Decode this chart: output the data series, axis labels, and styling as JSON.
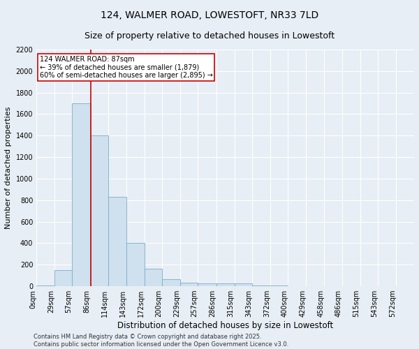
{
  "title": "124, WALMER ROAD, LOWESTOFT, NR33 7LD",
  "subtitle": "Size of property relative to detached houses in Lowestoft",
  "xlabel": "Distribution of detached houses by size in Lowestoft",
  "ylabel": "Number of detached properties",
  "bar_color": "#cfe0ee",
  "bar_edgecolor": "#7aafc8",
  "background_color": "#e8eef5",
  "grid_color": "#ffffff",
  "categories": [
    "0sqm",
    "29sqm",
    "57sqm",
    "86sqm",
    "114sqm",
    "143sqm",
    "172sqm",
    "200sqm",
    "229sqm",
    "257sqm",
    "286sqm",
    "315sqm",
    "343sqm",
    "372sqm",
    "400sqm",
    "429sqm",
    "458sqm",
    "486sqm",
    "515sqm",
    "543sqm",
    "572sqm"
  ],
  "bar_heights": [
    10,
    150,
    1700,
    1400,
    830,
    400,
    160,
    65,
    35,
    30,
    30,
    25,
    5,
    5,
    0,
    0,
    0,
    0,
    0,
    0,
    0
  ],
  "bin_edges": [
    0,
    29,
    57,
    86,
    114,
    143,
    172,
    200,
    229,
    257,
    286,
    315,
    343,
    372,
    400,
    429,
    458,
    486,
    515,
    543,
    572,
    601
  ],
  "property_size": 87,
  "red_line_color": "#cc0000",
  "annotation_line1": "124 WALMER ROAD: 87sqm",
  "annotation_line2": "← 39% of detached houses are smaller (1,879)",
  "annotation_line3": "60% of semi-detached houses are larger (2,895) →",
  "annotation_boxcolor": "#ffffff",
  "annotation_edgecolor": "#cc0000",
  "ylim": [
    0,
    2200
  ],
  "yticks": [
    0,
    200,
    400,
    600,
    800,
    1000,
    1200,
    1400,
    1600,
    1800,
    2000,
    2200
  ],
  "footnote": "Contains HM Land Registry data © Crown copyright and database right 2025.\nContains public sector information licensed under the Open Government Licence v3.0.",
  "title_fontsize": 10,
  "subtitle_fontsize": 9,
  "xlabel_fontsize": 8.5,
  "ylabel_fontsize": 8,
  "tick_fontsize": 7,
  "annotation_fontsize": 7,
  "footnote_fontsize": 6
}
